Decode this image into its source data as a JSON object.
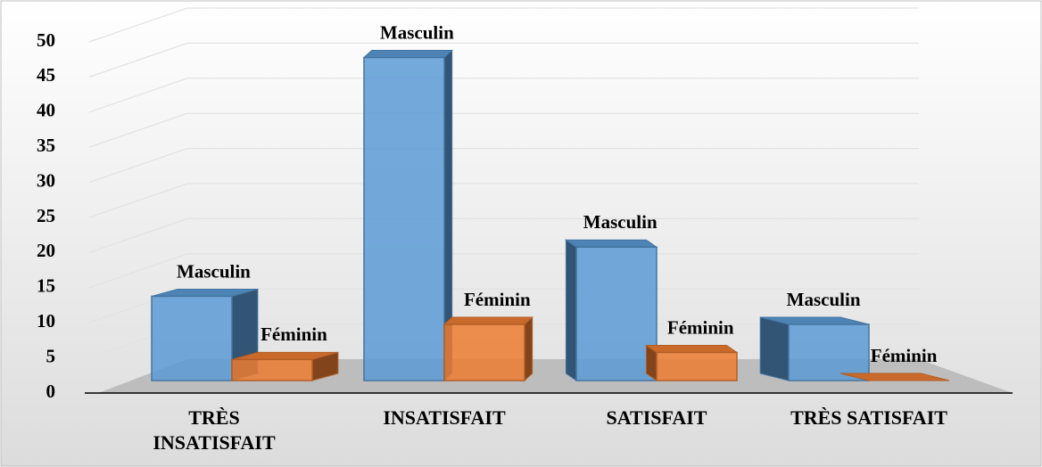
{
  "chart_data": {
    "type": "bar3d",
    "categories": [
      "TRÈS INSATISFAIT",
      "INSATISFAIT",
      "SATISFAIT",
      "TRÈS SATISFAIT"
    ],
    "series": [
      {
        "name": "Masculin",
        "color": "#5b9bd5",
        "values": [
          12,
          46,
          19,
          8
        ]
      },
      {
        "name": "Féminin",
        "color": "#ed7d31",
        "values": [
          3,
          8,
          4,
          0
        ]
      }
    ],
    "ylim": [
      0,
      50
    ],
    "yticks": [
      0,
      5,
      10,
      15,
      20,
      25,
      30,
      35,
      40,
      45,
      50
    ],
    "grid": true
  }
}
